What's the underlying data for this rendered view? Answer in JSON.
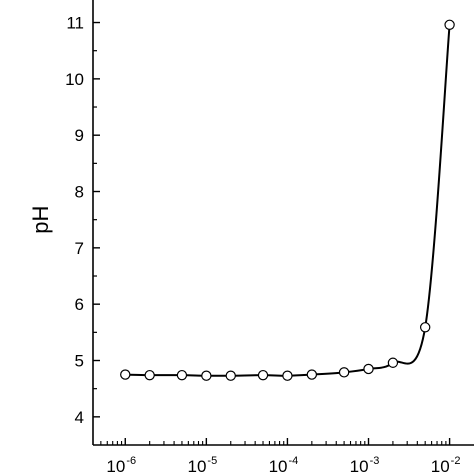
{
  "chart_data": {
    "type": "scatter",
    "xlabel": "",
    "ylabel": "pH",
    "xscale": "log",
    "xlim": [
      4e-07,
      0.02
    ],
    "ylim": [
      3.5,
      11.4
    ],
    "x_ticks": [
      {
        "value": 1e-06,
        "base": "10",
        "exp": "-6"
      },
      {
        "value": 1e-05,
        "base": "10",
        "exp": "-5"
      },
      {
        "value": 0.0001,
        "base": "10",
        "exp": "-4"
      },
      {
        "value": 0.001,
        "base": "10",
        "exp": "-3"
      },
      {
        "value": 0.01,
        "base": "10",
        "exp": "-2"
      }
    ],
    "y_ticks": [
      4,
      5,
      6,
      7,
      8,
      9,
      10,
      11
    ],
    "y_tick_labels": [
      "4",
      "5",
      "6",
      "7",
      "8",
      "9",
      "10",
      "11"
    ],
    "series": [
      {
        "marker": "open-circle",
        "line": "smooth",
        "color": "#000000",
        "points": [
          {
            "x": 1e-06,
            "y": 4.75
          },
          {
            "x": 2e-06,
            "y": 4.74
          },
          {
            "x": 5e-06,
            "y": 4.74
          },
          {
            "x": 1e-05,
            "y": 4.73
          },
          {
            "x": 2e-05,
            "y": 4.73
          },
          {
            "x": 5e-05,
            "y": 4.74
          },
          {
            "x": 0.0001,
            "y": 4.73
          },
          {
            "x": 0.0002,
            "y": 4.75
          },
          {
            "x": 0.0005,
            "y": 4.79
          },
          {
            "x": 0.001,
            "y": 4.85
          },
          {
            "x": 0.002,
            "y": 4.96
          },
          {
            "x": 0.005,
            "y": 5.59
          },
          {
            "x": 0.01,
            "y": 10.96
          }
        ]
      }
    ],
    "grid": false
  }
}
